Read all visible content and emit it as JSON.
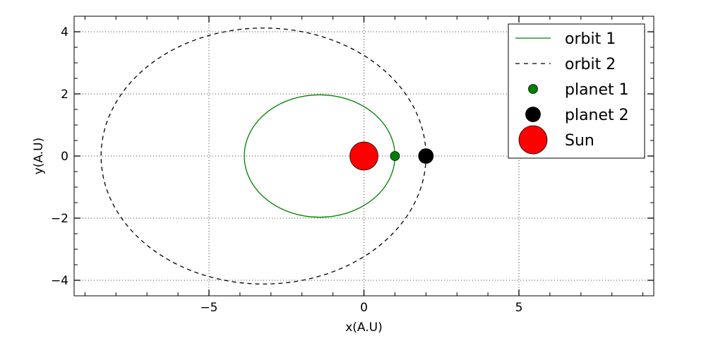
{
  "chart_data": {
    "type": "scatter",
    "title": "",
    "xlabel": "x(A.U)",
    "ylabel": "y(A.U)",
    "xlim": [
      -9.35,
      9.35
    ],
    "ylim": [
      -4.5,
      4.5
    ],
    "xticks": [
      -5,
      0,
      5
    ],
    "xtick_labels": [
      "−5",
      "0",
      "5"
    ],
    "yticks": [
      -4,
      -2,
      0,
      2,
      4
    ],
    "ytick_labels": [
      "−4",
      "−2",
      "0",
      "2",
      "4"
    ],
    "grid": true,
    "legend_position": "top-right",
    "series": [
      {
        "name": "orbit 1",
        "kind": "line",
        "style": "solid",
        "color": "#008000",
        "ellipse": {
          "center_x": -1.43,
          "center_y": 0,
          "semi_major_x": 2.43,
          "semi_minor_y": 1.97
        }
      },
      {
        "name": "orbit 2",
        "kind": "line",
        "style": "dashed",
        "color": "#000000",
        "ellipse": {
          "center_x": -3.24,
          "center_y": 0,
          "semi_major_x": 5.24,
          "semi_minor_y": 4.12
        }
      },
      {
        "name": "planet 1",
        "kind": "point",
        "x": 1.0,
        "y": 0,
        "color": "#008000",
        "size": "small"
      },
      {
        "name": "planet 2",
        "kind": "point",
        "x": 2.0,
        "y": 0,
        "color": "#000000",
        "size": "medium"
      },
      {
        "name": "Sun",
        "kind": "point",
        "x": 0,
        "y": 0,
        "color": "#ff0000",
        "size": "large"
      }
    ]
  }
}
